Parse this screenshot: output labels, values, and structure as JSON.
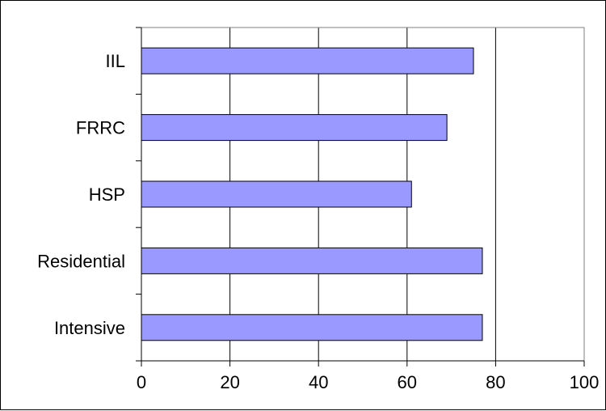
{
  "chart_data": {
    "type": "bar",
    "orientation": "horizontal",
    "title": "",
    "xlabel": "",
    "ylabel": "",
    "categories": [
      "IIL",
      "FRRC",
      "HSP",
      "Residential",
      "Intensive"
    ],
    "values": [
      75,
      69,
      61,
      77,
      77
    ],
    "xlim": [
      0,
      100
    ],
    "x_ticks": [
      "0",
      "20",
      "40",
      "60",
      "80",
      "100"
    ],
    "grid": "vertical major gridlines",
    "legend": "none",
    "bar_color": "#9999ff",
    "bar_edge_color": "#000000"
  }
}
